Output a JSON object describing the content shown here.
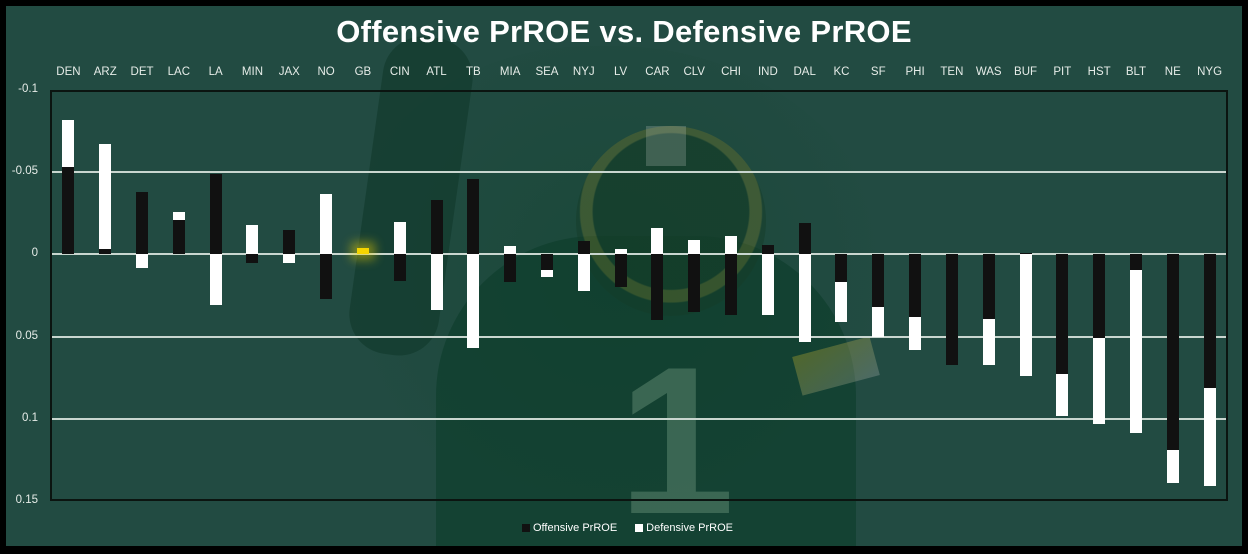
{
  "chart_data": {
    "type": "bar",
    "stacked": true,
    "title": "Offensive PrROE vs. Defensive PrROE",
    "xlabel": "",
    "ylabel": "",
    "ylim": [
      -0.1,
      0.15
    ],
    "y_inverted": true,
    "yticks": [
      "-0.1",
      "-0.05",
      "0",
      "0.05",
      "0.1",
      "0.15"
    ],
    "grid": true,
    "legend_position": "bottom",
    "categories": [
      "DEN",
      "ARZ",
      "DET",
      "LAC",
      "LA",
      "MIN",
      "JAX",
      "NO",
      "GB",
      "CIN",
      "ATL",
      "TB",
      "MIA",
      "SEA",
      "NYJ",
      "LV",
      "CAR",
      "CLV",
      "CHI",
      "IND",
      "DAL",
      "KC",
      "SF",
      "PHI",
      "TEN",
      "WAS",
      "BUF",
      "PIT",
      "HST",
      "BLT",
      "NE",
      "NYG"
    ],
    "series": [
      {
        "name": "Offensive PrROE",
        "color": "#111111",
        "values": [
          -0.053,
          -0.003,
          -0.038,
          -0.021,
          -0.049,
          0.005,
          -0.015,
          0.027,
          -0.002,
          0.016,
          -0.033,
          -0.046,
          0.017,
          0.0095,
          -0.008,
          0.02,
          0.04,
          0.035,
          0.037,
          -0.006,
          -0.019,
          0.017,
          0.032,
          0.038,
          0.067,
          0.039,
          -0.001,
          0.073,
          0.051,
          0.0095,
          0.119,
          0.081
        ]
      },
      {
        "name": "Defensive PrROE",
        "color": "#ffffff",
        "values": [
          -0.029,
          -0.064,
          0.008,
          -0.005,
          0.031,
          -0.018,
          0.005,
          -0.037,
          -0.002,
          -0.02,
          0.034,
          0.057,
          -0.005,
          0.0045,
          0.022,
          -0.0035,
          -0.016,
          -0.009,
          -0.011,
          0.037,
          0.053,
          0.024,
          0.018,
          0.02,
          0.0,
          0.028,
          0.074,
          0.025,
          0.052,
          0.099,
          0.02,
          0.06
        ]
      }
    ],
    "highlight": {
      "category": "GB",
      "color": "#f5d400"
    }
  },
  "legend": {
    "offensive_label": "Offensive PrROE",
    "defensive_label": "Defensive PrROE"
  },
  "background": {
    "jersey_number": "1"
  }
}
